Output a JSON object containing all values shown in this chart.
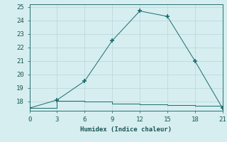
{
  "xlabel": "Humidex (Indice chaleur)",
  "background_color": "#d6eef0",
  "grid_color": "#b8d4d8",
  "line_color": "#1a6b6b",
  "x_curve": [
    0,
    3,
    6,
    9,
    12,
    15,
    18,
    21
  ],
  "y_curve": [
    17.5,
    18.1,
    19.5,
    22.5,
    24.7,
    24.3,
    21.0,
    17.5
  ],
  "x_flat": [
    0,
    3,
    6,
    9,
    12,
    15,
    18,
    21
  ],
  "y_flat": [
    17.5,
    18.05,
    18.0,
    17.85,
    17.75,
    17.7,
    17.65,
    17.5
  ],
  "xlim": [
    0,
    21
  ],
  "ylim": [
    17.3,
    25.2
  ],
  "xticks": [
    0,
    3,
    6,
    9,
    12,
    15,
    18,
    21
  ],
  "yticks": [
    18,
    19,
    20,
    21,
    22,
    23,
    24,
    25
  ],
  "label_fontsize": 6.5,
  "tick_fontsize": 6.5
}
